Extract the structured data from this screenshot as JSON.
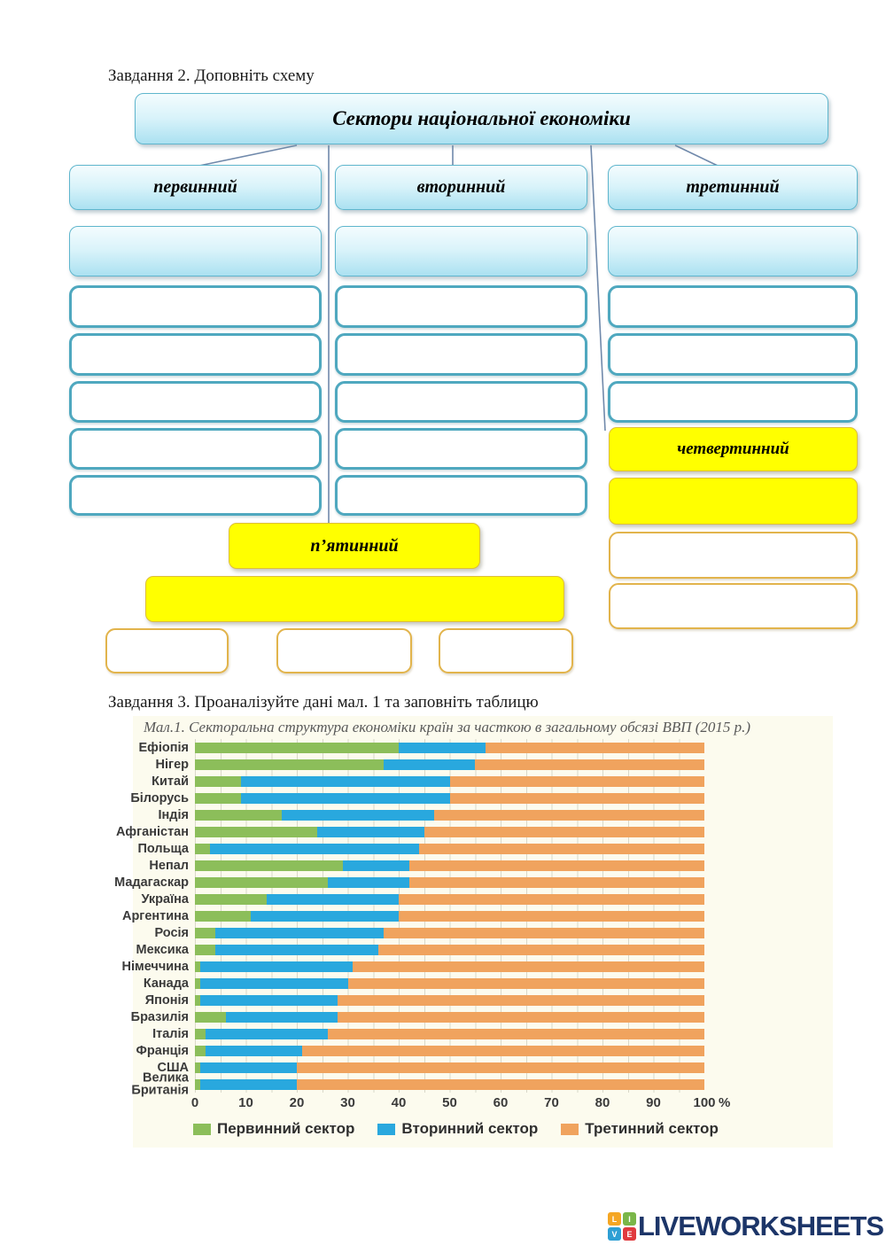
{
  "task2": {
    "heading": "Завдання 2. Доповніть схему"
  },
  "task3": {
    "heading": "Завдання 3. Проаналізуйте дані мал. 1 та заповніть таблицю"
  },
  "schema": {
    "title": "Сектори національної економіки",
    "primary_label": "первинний",
    "secondary_label": "вторинний",
    "tertiary_label": "третинний",
    "quaternary_label": "четвертинний",
    "quinary_label": "п’ятинний"
  },
  "chart_data": {
    "type": "bar",
    "variant": "stacked-horizontal",
    "title": "Мал.1. Секторальна структура економіки країн за часткою в загальному обсязі ВВП (2015 р.)",
    "categories": [
      "Ефіопія",
      "Нігер",
      "Китай",
      "Білорусь",
      "Індія",
      "Афганістан",
      "Польща",
      "Непал",
      "Мадагаскар",
      "Україна",
      "Аргентина",
      "Росія",
      "Мексика",
      "Німеччина",
      "Канада",
      "Японія",
      "Бразилія",
      "Італія",
      "Франція",
      "США",
      "Велика\nБританія"
    ],
    "series": [
      {
        "name": "Первинний сектор",
        "color": "#8cbe5a",
        "values": [
          40,
          37,
          9,
          9,
          17,
          24,
          3,
          29,
          26,
          14,
          11,
          4,
          4,
          1,
          1,
          1,
          6,
          2,
          2,
          1,
          1
        ]
      },
      {
        "name": "Вторинний сектор",
        "color": "#29a8de",
        "values": [
          17,
          18,
          41,
          41,
          30,
          21,
          41,
          13,
          16,
          26,
          29,
          33,
          32,
          30,
          29,
          27,
          22,
          24,
          19,
          19,
          19
        ]
      },
      {
        "name": "Третинний сектор",
        "color": "#f0a35e",
        "values": [
          43,
          45,
          50,
          50,
          53,
          55,
          56,
          58,
          58,
          60,
          60,
          63,
          64,
          69,
          70,
          72,
          72,
          74,
          79,
          80,
          80
        ]
      }
    ],
    "xlim": [
      0,
      100
    ],
    "x_ticks": [
      0,
      10,
      20,
      30,
      40,
      50,
      60,
      70,
      80,
      90,
      100
    ],
    "x_unit": "%",
    "grid_step": 5,
    "grid": true,
    "legend_position": "bottom"
  },
  "footer": {
    "brand": "LIVEWORKSHEETS",
    "logo": [
      {
        "letter": "L",
        "color": "#f5a623"
      },
      {
        "letter": "I",
        "color": "#7ab648"
      },
      {
        "letter": "V",
        "color": "#2e9fd4"
      },
      {
        "letter": "E",
        "color": "#e03a3e"
      }
    ]
  }
}
